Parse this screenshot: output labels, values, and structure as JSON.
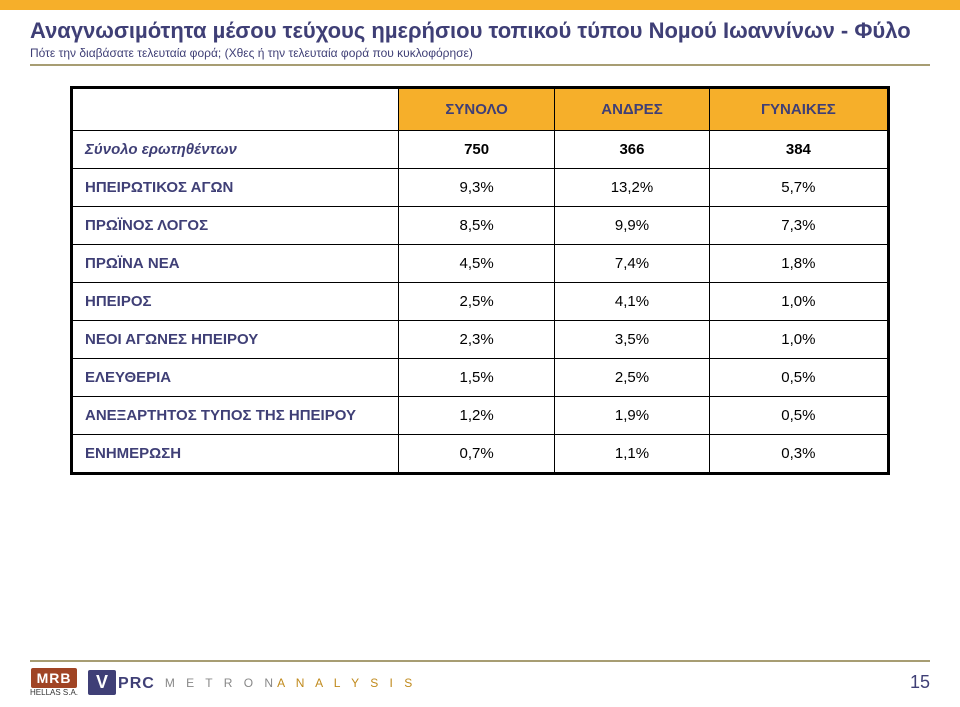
{
  "title": "Αναγνωσιµότητα µέσου τεύχους ηµερήσιου τοπικού τύπου Νοµού Ιωαννίνων - Φύλο",
  "subtitle": "Πότε την διαβάσατε τελευταία φορά; (Χθες ή την τελευταία φορά που κυκλοφόρησε)",
  "table": {
    "headers": [
      "",
      "ΣΥΝΟΛΟ",
      "ΑΝΔΡΕΣ",
      "ΓΥΝΑΙΚΕΣ"
    ],
    "rows": [
      {
        "label": "Σύνολο ερωτηθέντων",
        "values": [
          "750",
          "366",
          "384"
        ],
        "emph": true
      },
      {
        "label": "ΗΠΕΙΡΩΤΙΚΟΣ ΑΓΩΝ",
        "values": [
          "9,3%",
          "13,2%",
          "5,7%"
        ],
        "emph": false
      },
      {
        "label": "ΠΡΩΪΝΟΣ ΛΟΓΟΣ",
        "values": [
          "8,5%",
          "9,9%",
          "7,3%"
        ],
        "emph": false
      },
      {
        "label": "ΠΡΩΪΝΑ ΝΕΑ",
        "values": [
          "4,5%",
          "7,4%",
          "1,8%"
        ],
        "emph": false
      },
      {
        "label": "ΗΠΕΙΡΟΣ",
        "values": [
          "2,5%",
          "4,1%",
          "1,0%"
        ],
        "emph": false
      },
      {
        "label": "ΝΕΟΙ ΑΓΩΝΕΣ ΗΠΕΙΡΟΥ",
        "values": [
          "2,3%",
          "3,5%",
          "1,0%"
        ],
        "emph": false
      },
      {
        "label": "ΕΛΕΥΘΕΡΙΑ",
        "values": [
          "1,5%",
          "2,5%",
          "0,5%"
        ],
        "emph": false
      },
      {
        "label": "ΑΝΕΞΑΡΤΗΤΟΣ ΤΥΠΟΣ ΤΗΣ ΗΠΕΙΡΟΥ",
        "values": [
          "1,2%",
          "1,9%",
          "0,5%"
        ],
        "emph": false
      },
      {
        "label": "ΕΝΗΜΕΡΩΣΗ",
        "values": [
          "0,7%",
          "1,1%",
          "0,3%"
        ],
        "emph": false
      }
    ]
  },
  "logos": {
    "mrb": {
      "text": "MRB",
      "caption": "HELLAS S.A."
    },
    "vprc": {
      "v": "V",
      "prc": "PRC"
    },
    "metron": {
      "pre": "M E T R O N",
      "highlight": "A N A L Y S I S"
    }
  },
  "page_number": "15"
}
